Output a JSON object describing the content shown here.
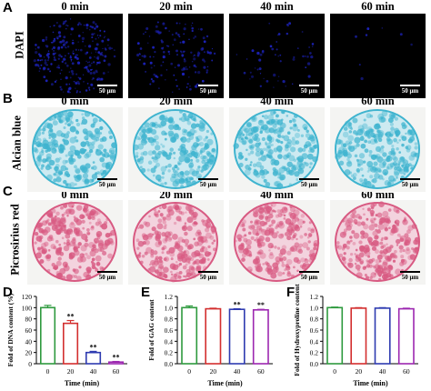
{
  "panels": {
    "A": {
      "letter": "A",
      "row_label": "DAPI",
      "stain": "dapi",
      "base_color": "#1c22b8",
      "density": [
        1.0,
        0.55,
        0.22,
        0.03
      ]
    },
    "B": {
      "letter": "B",
      "row_label": "Alcian blue",
      "stain": "alcian",
      "base_color": "#3fb4cf",
      "density": [
        1.0,
        0.85,
        0.9,
        0.85
      ]
    },
    "C": {
      "letter": "C",
      "row_label": "Picrosirius red",
      "stain": "picro",
      "base_color": "#d85a82",
      "density": [
        1.0,
        0.8,
        0.75,
        0.95
      ]
    }
  },
  "time_headers": [
    "0 min",
    "20 min",
    "40 min",
    "60 min"
  ],
  "scale_bar_label": "50 μm",
  "charts": {
    "D": {
      "letter": "D"
    },
    "E": {
      "letter": "E"
    },
    "F": {
      "letter": "F"
    }
  },
  "chart_data": [
    {
      "type": "bar",
      "panel": "D",
      "title": "",
      "xlabel": "Time (min)",
      "ylabel": "Fold of DNA content (%)",
      "categories": [
        "0",
        "20",
        "40",
        "60"
      ],
      "values": [
        100,
        72,
        20,
        3
      ],
      "errors": [
        4,
        5,
        2,
        1
      ],
      "significance": [
        "",
        "**",
        "**",
        "**"
      ],
      "ylim": [
        0,
        120
      ],
      "yticks": [
        0,
        20,
        40,
        60,
        80,
        100,
        120
      ],
      "bar_colors": [
        "#2e9a3e",
        "#d32f2f",
        "#2e3bb0",
        "#9c27b0"
      ]
    },
    {
      "type": "bar",
      "panel": "E",
      "title": "",
      "xlabel": "Time (min)",
      "ylabel": "Fold of GAG content",
      "categories": [
        "0",
        "20",
        "40",
        "60"
      ],
      "values": [
        1.0,
        0.98,
        0.97,
        0.96
      ],
      "errors": [
        0.03,
        0.01,
        0.01,
        0.01
      ],
      "significance": [
        "",
        "",
        "**",
        "**"
      ],
      "ylim": [
        0,
        1.2
      ],
      "yticks": [
        0.0,
        0.2,
        0.4,
        0.6,
        0.8,
        1.0,
        1.2
      ],
      "bar_colors": [
        "#2e9a3e",
        "#d32f2f",
        "#2e3bb0",
        "#9c27b0"
      ]
    },
    {
      "type": "bar",
      "panel": "F",
      "title": "",
      "xlabel": "Time (min)",
      "ylabel": "Fold of Hydroxyproline content",
      "categories": [
        "0",
        "20",
        "40",
        "60"
      ],
      "values": [
        1.0,
        0.99,
        0.99,
        0.98
      ],
      "errors": [
        0.01,
        0.01,
        0.01,
        0.01
      ],
      "significance": [
        "",
        "",
        "",
        ""
      ],
      "ylim": [
        0,
        1.2
      ],
      "yticks": [
        0.0,
        0.2,
        0.4,
        0.6,
        0.8,
        1.0,
        1.2
      ],
      "bar_colors": [
        "#2e9a3e",
        "#d32f2f",
        "#2e3bb0",
        "#9c27b0"
      ]
    }
  ]
}
